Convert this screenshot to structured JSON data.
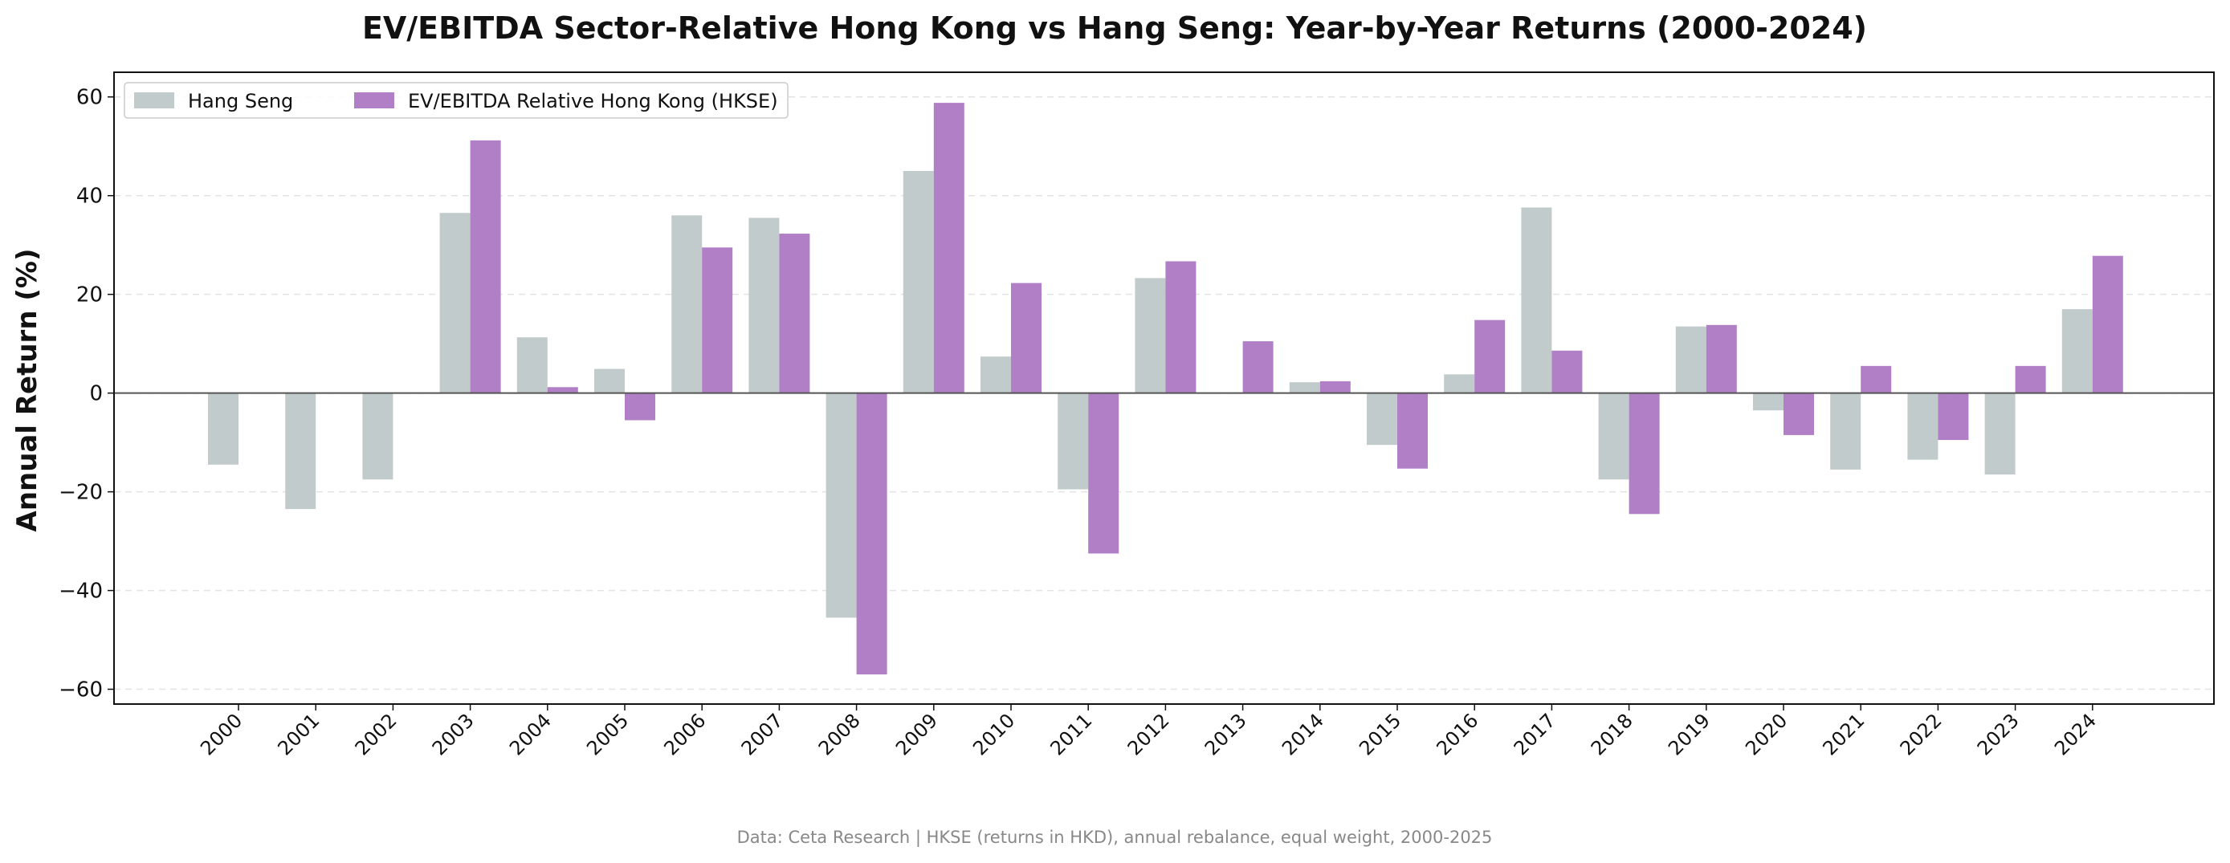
{
  "chart_data": {
    "type": "bar",
    "title": "EV/EBITDA Sector-Relative Hong Kong vs Hang Seng: Year-by-Year Returns (2000-2024)",
    "ylabel": "Annual Return (%)",
    "xlabel": "",
    "ylim": [
      -63,
      65
    ],
    "yticks": [
      -60,
      -40,
      -20,
      0,
      20,
      40,
      60
    ],
    "grid": "horizontal dashed",
    "legend_position": "top-left",
    "categories": [
      "2000",
      "2001",
      "2002",
      "2003",
      "2004",
      "2005",
      "2006",
      "2007",
      "2008",
      "2009",
      "2010",
      "2011",
      "2012",
      "2013",
      "2014",
      "2015",
      "2016",
      "2017",
      "2018",
      "2019",
      "2020",
      "2021",
      "2022",
      "2023",
      "2024"
    ],
    "series": [
      {
        "name": "Hang Seng",
        "color": "#c1cbcb",
        "values": [
          -14.5,
          -23.5,
          -17.5,
          36.5,
          11.3,
          4.9,
          36.0,
          35.5,
          -45.5,
          45.0,
          7.4,
          -19.5,
          23.3,
          null,
          2.2,
          -10.5,
          3.8,
          37.6,
          -17.5,
          13.5,
          -3.5,
          -15.5,
          -13.5,
          -16.5,
          17.0
        ]
      },
      {
        "name": "EV/EBITDA Relative Hong Kong (HKSE)",
        "color": "#b07fc6",
        "values": [
          null,
          null,
          null,
          51.2,
          1.2,
          -5.5,
          29.5,
          32.3,
          -57.0,
          58.8,
          22.3,
          -32.5,
          26.7,
          10.5,
          2.4,
          -15.3,
          14.8,
          8.6,
          -24.5,
          13.8,
          -8.5,
          5.5,
          -9.5,
          5.5,
          27.8
        ]
      }
    ],
    "footnote": "Data: Ceta Research | HKSE (returns in HKD), annual rebalance, equal weight, 2000-2025"
  }
}
